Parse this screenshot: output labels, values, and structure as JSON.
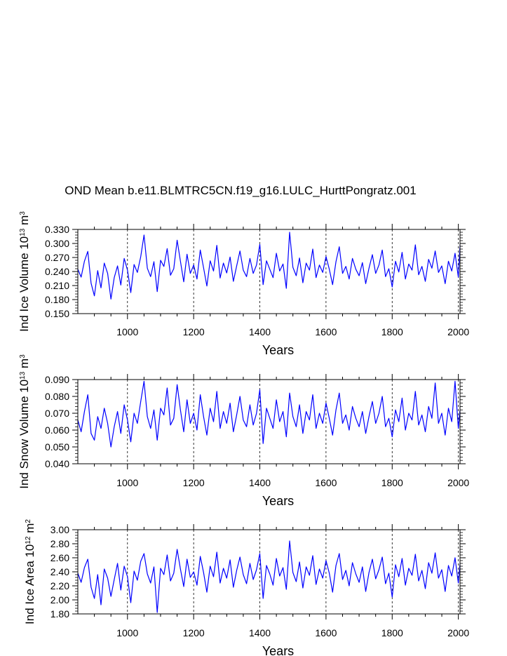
{
  "title": "OND Mean b.e11.BLMTRC5CN.f19_g16.LULC_HurttPongratz.001",
  "series_color": "#0000ff",
  "chart_data": [
    {
      "type": "line",
      "name": "ice_volume",
      "ylabel": {
        "main": "Ind Ice Volume 10",
        "sup1": "13",
        "mid": " m",
        "sup2": "3"
      },
      "xlabel": "Years",
      "xlim": [
        850,
        2005
      ],
      "ylim": [
        0.15,
        0.33
      ],
      "x_ticks": [
        1000,
        1200,
        1400,
        1600,
        1800,
        2000
      ],
      "x_tick_labels": [
        "1000",
        "1200",
        "1400",
        "1600",
        "1800",
        "2000"
      ],
      "y_ticks": [
        0.15,
        0.18,
        0.21,
        0.24,
        0.27,
        0.3,
        0.33
      ],
      "y_tick_labels": [
        "0.150",
        "0.180",
        "0.210",
        "0.240",
        "0.270",
        "0.300",
        "0.330"
      ],
      "grid": "vertical dashed at x ticks",
      "x": [
        850,
        860,
        870,
        880,
        890,
        900,
        910,
        920,
        930,
        940,
        950,
        960,
        970,
        980,
        990,
        1000,
        1010,
        1020,
        1030,
        1040,
        1050,
        1060,
        1070,
        1080,
        1090,
        1100,
        1110,
        1120,
        1130,
        1140,
        1150,
        1160,
        1170,
        1180,
        1190,
        1200,
        1210,
        1220,
        1230,
        1240,
        1250,
        1260,
        1270,
        1280,
        1290,
        1300,
        1310,
        1320,
        1330,
        1340,
        1350,
        1360,
        1370,
        1380,
        1390,
        1400,
        1410,
        1420,
        1430,
        1440,
        1450,
        1460,
        1470,
        1480,
        1490,
        1500,
        1510,
        1520,
        1530,
        1540,
        1550,
        1560,
        1570,
        1580,
        1590,
        1600,
        1610,
        1620,
        1630,
        1640,
        1650,
        1660,
        1670,
        1680,
        1690,
        1700,
        1710,
        1720,
        1730,
        1740,
        1750,
        1760,
        1770,
        1780,
        1790,
        1800,
        1810,
        1820,
        1830,
        1840,
        1850,
        1860,
        1870,
        1880,
        1890,
        1900,
        1910,
        1920,
        1930,
        1940,
        1950,
        1960,
        1970,
        1980,
        1990,
        2000,
        2005
      ],
      "values": [
        0.245,
        0.228,
        0.262,
        0.283,
        0.215,
        0.188,
        0.242,
        0.205,
        0.258,
        0.236,
        0.181,
        0.227,
        0.252,
        0.211,
        0.268,
        0.243,
        0.195,
        0.255,
        0.238,
        0.272,
        0.318,
        0.247,
        0.229,
        0.261,
        0.197,
        0.264,
        0.251,
        0.289,
        0.232,
        0.246,
        0.307,
        0.262,
        0.218,
        0.277,
        0.236,
        0.254,
        0.224,
        0.286,
        0.248,
        0.209,
        0.263,
        0.241,
        0.296,
        0.226,
        0.258,
        0.237,
        0.271,
        0.219,
        0.252,
        0.284,
        0.243,
        0.229,
        0.268,
        0.236,
        0.254,
        0.298,
        0.212,
        0.263,
        0.245,
        0.227,
        0.279,
        0.241,
        0.256,
        0.204,
        0.324,
        0.249,
        0.231,
        0.269,
        0.216,
        0.258,
        0.243,
        0.288,
        0.227,
        0.254,
        0.238,
        0.272,
        0.245,
        0.212,
        0.261,
        0.293,
        0.236,
        0.251,
        0.224,
        0.268,
        0.245,
        0.231,
        0.259,
        0.214,
        0.247,
        0.276,
        0.236,
        0.254,
        0.286,
        0.229,
        0.246,
        0.207,
        0.262,
        0.239,
        0.281,
        0.224,
        0.256,
        0.243,
        0.297,
        0.233,
        0.251,
        0.219,
        0.266,
        0.247,
        0.284,
        0.238,
        0.252,
        0.214,
        0.262,
        0.241,
        0.279,
        0.228,
        0.296
      ]
    },
    {
      "type": "line",
      "name": "snow_volume",
      "ylabel": {
        "main": "Ind Snow Volume 10",
        "sup1": "13",
        "mid": " m",
        "sup2": "3"
      },
      "xlabel": "Years",
      "xlim": [
        850,
        2005
      ],
      "ylim": [
        0.04,
        0.09
      ],
      "x_ticks": [
        1000,
        1200,
        1400,
        1600,
        1800,
        2000
      ],
      "x_tick_labels": [
        "1000",
        "1200",
        "1400",
        "1600",
        "1800",
        "2000"
      ],
      "y_ticks": [
        0.04,
        0.05,
        0.06,
        0.07,
        0.08,
        0.09
      ],
      "y_tick_labels": [
        "0.040",
        "0.050",
        "0.060",
        "0.070",
        "0.080",
        "0.090"
      ],
      "grid": "vertical dashed at x ticks",
      "x": [
        850,
        860,
        870,
        880,
        890,
        900,
        910,
        920,
        930,
        940,
        950,
        960,
        970,
        980,
        990,
        1000,
        1010,
        1020,
        1030,
        1040,
        1050,
        1060,
        1070,
        1080,
        1090,
        1100,
        1110,
        1120,
        1130,
        1140,
        1150,
        1160,
        1170,
        1180,
        1190,
        1200,
        1210,
        1220,
        1230,
        1240,
        1250,
        1260,
        1270,
        1280,
        1290,
        1300,
        1310,
        1320,
        1330,
        1340,
        1350,
        1360,
        1370,
        1380,
        1390,
        1400,
        1410,
        1420,
        1430,
        1440,
        1450,
        1460,
        1470,
        1480,
        1490,
        1500,
        1510,
        1520,
        1530,
        1540,
        1550,
        1560,
        1570,
        1580,
        1590,
        1600,
        1610,
        1620,
        1630,
        1640,
        1650,
        1660,
        1670,
        1680,
        1690,
        1700,
        1710,
        1720,
        1730,
        1740,
        1750,
        1760,
        1770,
        1780,
        1790,
        1800,
        1810,
        1820,
        1830,
        1840,
        1850,
        1860,
        1870,
        1880,
        1890,
        1900,
        1910,
        1920,
        1930,
        1940,
        1950,
        1960,
        1970,
        1980,
        1990,
        2000,
        2005
      ],
      "values": [
        0.066,
        0.059,
        0.071,
        0.081,
        0.058,
        0.054,
        0.068,
        0.061,
        0.073,
        0.064,
        0.05,
        0.062,
        0.071,
        0.058,
        0.075,
        0.066,
        0.053,
        0.07,
        0.064,
        0.077,
        0.089,
        0.068,
        0.061,
        0.072,
        0.054,
        0.073,
        0.069,
        0.085,
        0.063,
        0.067,
        0.087,
        0.072,
        0.059,
        0.078,
        0.064,
        0.07,
        0.06,
        0.081,
        0.068,
        0.057,
        0.073,
        0.065,
        0.083,
        0.061,
        0.071,
        0.064,
        0.076,
        0.059,
        0.069,
        0.08,
        0.066,
        0.062,
        0.075,
        0.063,
        0.07,
        0.084,
        0.052,
        0.073,
        0.067,
        0.061,
        0.078,
        0.065,
        0.071,
        0.056,
        0.082,
        0.068,
        0.062,
        0.075,
        0.058,
        0.071,
        0.066,
        0.081,
        0.061,
        0.07,
        0.064,
        0.076,
        0.067,
        0.057,
        0.072,
        0.082,
        0.064,
        0.069,
        0.06,
        0.074,
        0.067,
        0.062,
        0.071,
        0.058,
        0.068,
        0.077,
        0.064,
        0.07,
        0.08,
        0.062,
        0.067,
        0.056,
        0.072,
        0.065,
        0.079,
        0.06,
        0.07,
        0.066,
        0.083,
        0.063,
        0.069,
        0.059,
        0.074,
        0.067,
        0.088,
        0.064,
        0.07,
        0.057,
        0.073,
        0.065,
        0.089,
        0.061,
        0.072
      ]
    },
    {
      "type": "line",
      "name": "ice_area",
      "ylabel": {
        "main": "Ind Ice Area 10",
        "sup1": "12",
        "mid": " m",
        "sup2": "2"
      },
      "xlabel": "Years",
      "xlim": [
        850,
        2005
      ],
      "ylim": [
        1.8,
        3.0
      ],
      "x_ticks": [
        1000,
        1200,
        1400,
        1600,
        1800,
        2000
      ],
      "x_tick_labels": [
        "1000",
        "1200",
        "1400",
        "1600",
        "1800",
        "2000"
      ],
      "y_ticks": [
        1.8,
        2.0,
        2.2,
        2.4,
        2.6,
        2.8,
        3.0
      ],
      "y_tick_labels": [
        "1.80",
        "2.00",
        "2.20",
        "2.40",
        "2.60",
        "2.80",
        "3.00"
      ],
      "grid": "vertical dashed at x ticks",
      "x": [
        850,
        860,
        870,
        880,
        890,
        900,
        910,
        920,
        930,
        940,
        950,
        960,
        970,
        980,
        990,
        1000,
        1010,
        1020,
        1030,
        1040,
        1050,
        1060,
        1070,
        1080,
        1090,
        1100,
        1110,
        1120,
        1130,
        1140,
        1150,
        1160,
        1170,
        1180,
        1190,
        1200,
        1210,
        1220,
        1230,
        1240,
        1250,
        1260,
        1270,
        1280,
        1290,
        1300,
        1310,
        1320,
        1330,
        1340,
        1350,
        1360,
        1370,
        1380,
        1390,
        1400,
        1410,
        1420,
        1430,
        1440,
        1450,
        1460,
        1470,
        1480,
        1490,
        1500,
        1510,
        1520,
        1530,
        1540,
        1550,
        1560,
        1570,
        1580,
        1590,
        1600,
        1610,
        1620,
        1630,
        1640,
        1650,
        1660,
        1670,
        1680,
        1690,
        1700,
        1710,
        1720,
        1730,
        1740,
        1750,
        1760,
        1770,
        1780,
        1790,
        1800,
        1810,
        1820,
        1830,
        1840,
        1850,
        1860,
        1870,
        1880,
        1890,
        1900,
        1910,
        1920,
        1930,
        1940,
        1950,
        1960,
        1970,
        1980,
        1990,
        2000,
        2005
      ],
      "values": [
        2.38,
        2.25,
        2.46,
        2.58,
        2.18,
        2.02,
        2.36,
        1.93,
        2.44,
        2.31,
        2.05,
        2.29,
        2.52,
        2.14,
        2.48,
        2.33,
        1.96,
        2.41,
        2.28,
        2.55,
        2.66,
        2.37,
        2.24,
        2.47,
        1.82,
        2.45,
        2.36,
        2.64,
        2.27,
        2.38,
        2.72,
        2.44,
        2.19,
        2.58,
        2.32,
        2.4,
        2.21,
        2.62,
        2.39,
        2.11,
        2.48,
        2.33,
        2.68,
        2.24,
        2.45,
        2.31,
        2.57,
        2.18,
        2.42,
        2.61,
        2.36,
        2.23,
        2.52,
        2.29,
        2.43,
        2.66,
        2.02,
        2.49,
        2.37,
        2.21,
        2.59,
        2.34,
        2.46,
        2.15,
        2.84,
        2.39,
        2.26,
        2.54,
        2.17,
        2.47,
        2.35,
        2.63,
        2.22,
        2.44,
        2.31,
        2.56,
        2.38,
        2.11,
        2.49,
        2.66,
        2.29,
        2.42,
        2.2,
        2.53,
        2.37,
        2.25,
        2.47,
        2.12,
        2.39,
        2.58,
        2.3,
        2.43,
        2.61,
        2.23,
        2.38,
        2.04,
        2.5,
        2.33,
        2.59,
        2.21,
        2.45,
        2.35,
        2.65,
        2.27,
        2.42,
        2.16,
        2.53,
        2.38,
        2.67,
        2.31,
        2.43,
        2.12,
        2.49,
        2.34,
        2.6,
        2.24,
        2.52
      ]
    }
  ]
}
